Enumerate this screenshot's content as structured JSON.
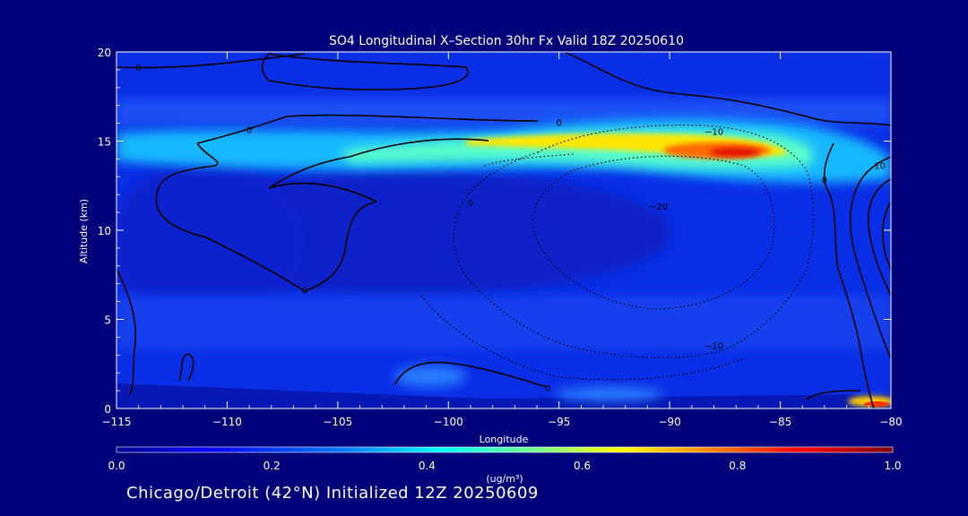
{
  "chart_data": {
    "type": "heatmap",
    "title": "SO4 Longitudinal X–Section 30hr  Fx Valid 18Z 20250610",
    "xlabel": "Longitude",
    "ylabel": "Altitude (km)",
    "xlim": [
      -115,
      -80
    ],
    "ylim": [
      0,
      20
    ],
    "x_ticks": [
      -115,
      -110,
      -105,
      -100,
      -95,
      -90,
      -85,
      -80
    ],
    "x_tick_labels": [
      "−115",
      "−110",
      "−105",
      "−100",
      "−95",
      "−90",
      "−85",
      "−80"
    ],
    "y_ticks": [
      0,
      5,
      10,
      15,
      20
    ],
    "y_tick_labels": [
      "0",
      "5",
      "10",
      "15",
      "20"
    ],
    "colorbar": {
      "label": "(ug/m³)",
      "min": 0.0,
      "max": 1.0,
      "ticks": [
        0.0,
        0.2,
        0.4,
        0.6,
        0.8,
        1.0
      ],
      "tick_labels": [
        "0.0",
        "0.2",
        "0.4",
        "0.6",
        "0.8",
        "1.0"
      ],
      "colormap": [
        "#00008f",
        "#0000ff",
        "#0080ff",
        "#00ffff",
        "#80ff80",
        "#ffff00",
        "#ff8000",
        "#ff0000",
        "#800000"
      ]
    },
    "concentration_features": [
      {
        "lon": -88,
        "alt": 14.3,
        "value": 0.85
      },
      {
        "lon": -91,
        "alt": 14.8,
        "value": 0.6
      },
      {
        "lon": -95,
        "alt": 15.0,
        "value": 0.5
      },
      {
        "lon": -100,
        "alt": 14.8,
        "value": 0.4
      },
      {
        "lon": -107,
        "alt": 14.5,
        "value": 0.25
      },
      {
        "lon": -81,
        "alt": 0.3,
        "value": 0.75
      }
    ],
    "contour_labels": [
      {
        "lon": -114,
        "alt": 19.1,
        "text": "0"
      },
      {
        "lon": -109,
        "alt": 15.6,
        "text": "0"
      },
      {
        "lon": -95,
        "alt": 16.0,
        "text": "0"
      },
      {
        "lon": -88,
        "alt": 15.5,
        "text": "−10"
      },
      {
        "lon": -80.5,
        "alt": 13.6,
        "text": "10"
      },
      {
        "lon": -83,
        "alt": 12.8,
        "text": "0"
      },
      {
        "lon": -99,
        "alt": 11.5,
        "text": "0"
      },
      {
        "lon": -90.5,
        "alt": 11.3,
        "text": "−20"
      },
      {
        "lon": -106.5,
        "alt": 6.6,
        "text": "0"
      },
      {
        "lon": -88,
        "alt": 3.5,
        "text": "−10"
      },
      {
        "lon": -95.5,
        "alt": 1.1,
        "text": "0"
      }
    ]
  },
  "footer": {
    "caption": "Chicago/Detroit (42°N) Initialized 12Z 20250609"
  },
  "colors": {
    "background": "#00007a",
    "axes": "#ffffff",
    "contour": "#000000"
  }
}
